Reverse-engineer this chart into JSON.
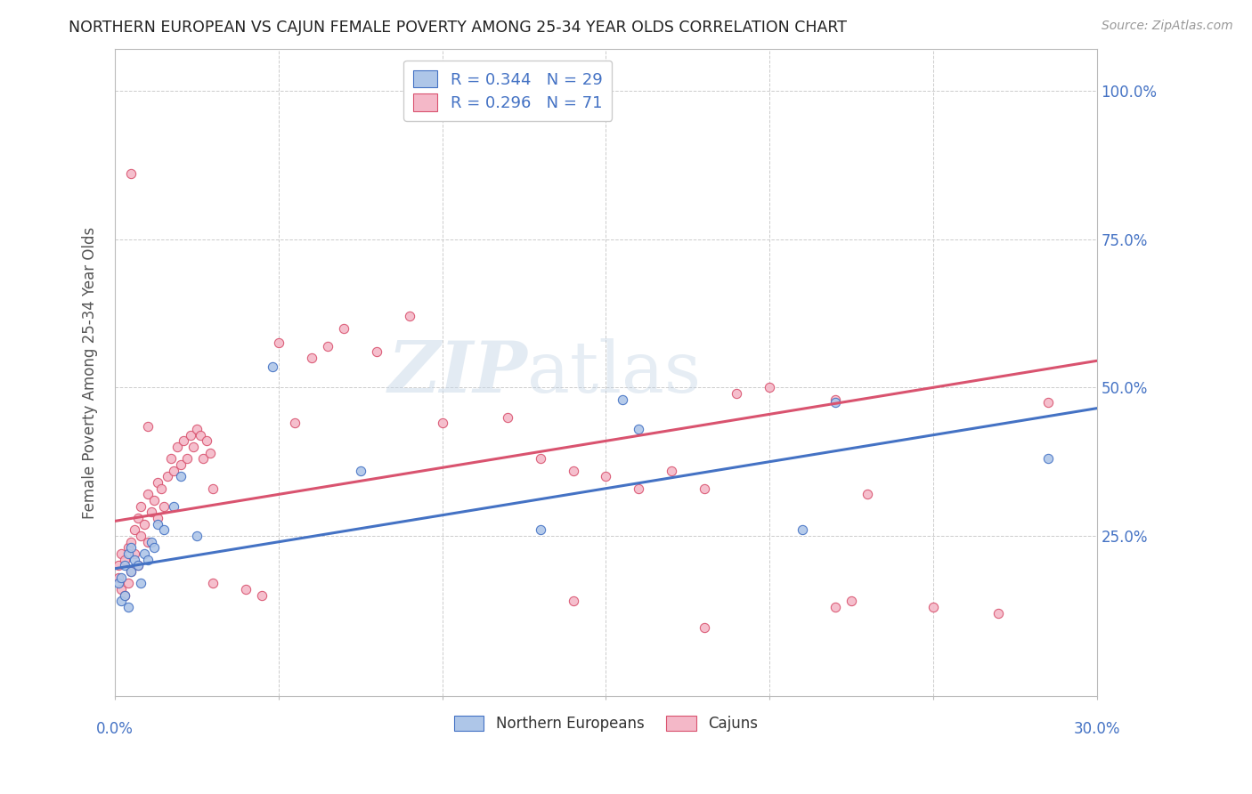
{
  "title": "NORTHERN EUROPEAN VS CAJUN FEMALE POVERTY AMONG 25-34 YEAR OLDS CORRELATION CHART",
  "source": "Source: ZipAtlas.com",
  "ylabel": "Female Poverty Among 25-34 Year Olds",
  "xlim": [
    0.0,
    0.3
  ],
  "ylim": [
    -0.02,
    1.07
  ],
  "ytick_values": [
    0.25,
    0.5,
    0.75,
    1.0
  ],
  "xtick_values": [
    0.0,
    0.05,
    0.1,
    0.15,
    0.2,
    0.25,
    0.3
  ],
  "ne_color": "#aec6e8",
  "ne_line_color": "#4472c4",
  "cajun_color": "#f4b8c8",
  "cajun_line_color": "#d9536f",
  "ne_R": 0.344,
  "ne_N": 29,
  "cajun_R": 0.296,
  "cajun_N": 71,
  "watermark_zip": "ZIP",
  "watermark_atlas": "atlas",
  "legend_label_ne": "Northern Europeans",
  "legend_label_cajun": "Cajuns",
  "ne_line_x0": 0.0,
  "ne_line_y0": 0.195,
  "ne_line_x1": 0.3,
  "ne_line_y1": 0.465,
  "cajun_line_x0": 0.0,
  "cajun_line_y0": 0.275,
  "cajun_line_x1": 0.3,
  "cajun_line_y1": 0.545,
  "background_color": "#ffffff",
  "grid_color": "#cccccc",
  "title_color": "#222222",
  "axis_label_color": "#555555",
  "right_axis_color": "#4472c4",
  "marker_size": 55,
  "ne_scatter_x": [
    0.001,
    0.002,
    0.002,
    0.003,
    0.003,
    0.004,
    0.004,
    0.005,
    0.005,
    0.006,
    0.007,
    0.008,
    0.009,
    0.01,
    0.011,
    0.012,
    0.013,
    0.015,
    0.018,
    0.02,
    0.025,
    0.048,
    0.075,
    0.13,
    0.155,
    0.16,
    0.21,
    0.22,
    0.285
  ],
  "ne_scatter_y": [
    0.17,
    0.14,
    0.18,
    0.15,
    0.2,
    0.13,
    0.22,
    0.19,
    0.23,
    0.21,
    0.2,
    0.17,
    0.22,
    0.21,
    0.24,
    0.23,
    0.27,
    0.26,
    0.3,
    0.35,
    0.25,
    0.535,
    0.36,
    0.26,
    0.48,
    0.43,
    0.26,
    0.475,
    0.38
  ],
  "cajun_scatter_x": [
    0.001,
    0.001,
    0.002,
    0.002,
    0.003,
    0.003,
    0.004,
    0.004,
    0.005,
    0.005,
    0.006,
    0.006,
    0.007,
    0.007,
    0.008,
    0.008,
    0.009,
    0.01,
    0.01,
    0.011,
    0.012,
    0.013,
    0.013,
    0.014,
    0.015,
    0.016,
    0.017,
    0.018,
    0.019,
    0.02,
    0.021,
    0.022,
    0.023,
    0.024,
    0.025,
    0.026,
    0.027,
    0.028,
    0.029,
    0.03,
    0.03,
    0.04,
    0.045,
    0.05,
    0.055,
    0.06,
    0.065,
    0.07,
    0.08,
    0.09,
    0.1,
    0.12,
    0.13,
    0.14,
    0.15,
    0.16,
    0.17,
    0.18,
    0.19,
    0.2,
    0.22,
    0.225,
    0.23,
    0.25,
    0.27,
    0.285,
    0.005,
    0.01,
    0.14,
    0.18,
    0.22
  ],
  "cajun_scatter_y": [
    0.18,
    0.2,
    0.16,
    0.22,
    0.15,
    0.21,
    0.17,
    0.23,
    0.19,
    0.24,
    0.22,
    0.26,
    0.2,
    0.28,
    0.25,
    0.3,
    0.27,
    0.24,
    0.32,
    0.29,
    0.31,
    0.28,
    0.34,
    0.33,
    0.3,
    0.35,
    0.38,
    0.36,
    0.4,
    0.37,
    0.41,
    0.38,
    0.42,
    0.4,
    0.43,
    0.42,
    0.38,
    0.41,
    0.39,
    0.33,
    0.17,
    0.16,
    0.15,
    0.575,
    0.44,
    0.55,
    0.57,
    0.6,
    0.56,
    0.62,
    0.44,
    0.45,
    0.38,
    0.36,
    0.35,
    0.33,
    0.36,
    0.33,
    0.49,
    0.5,
    0.13,
    0.14,
    0.32,
    0.13,
    0.12,
    0.475,
    0.86,
    0.435,
    0.14,
    0.095,
    0.48
  ]
}
